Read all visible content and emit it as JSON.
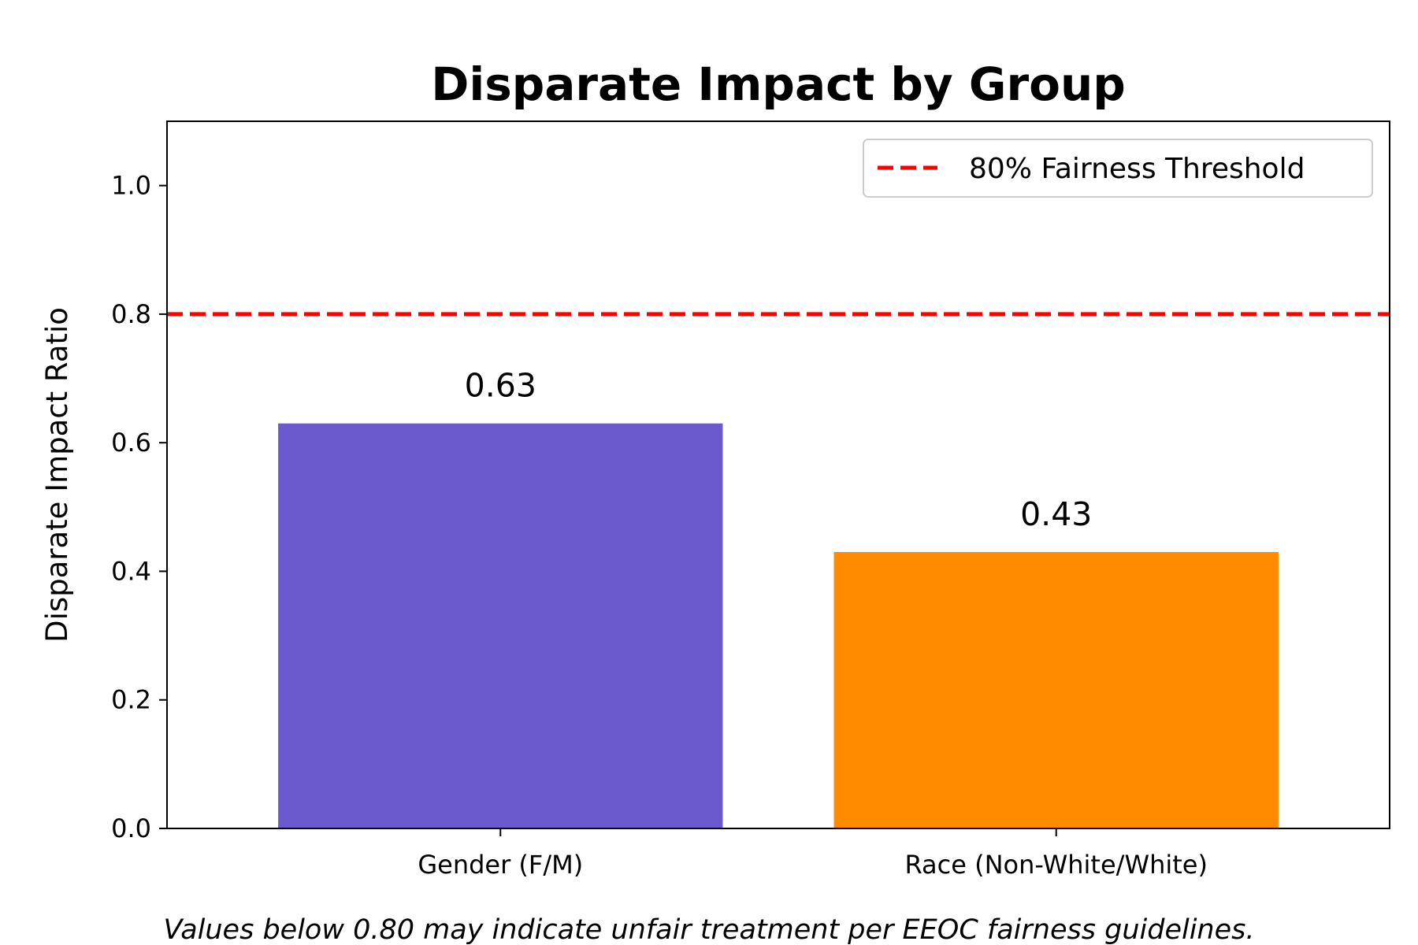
{
  "chart_data": {
    "type": "bar",
    "title": "Disparate Impact by Group",
    "xlabel": "",
    "ylabel": "Disparate Impact Ratio",
    "categories": [
      "Gender (F/M)",
      "Race (Non-White/White)"
    ],
    "values": [
      0.63,
      0.43
    ],
    "value_labels": [
      "0.63",
      "0.43"
    ],
    "bar_colors": [
      "#6a5acd",
      "#ff8c00"
    ],
    "ylim": [
      0,
      1.1
    ],
    "yticks": [
      0.0,
      0.2,
      0.4,
      0.6,
      0.8,
      1.0
    ],
    "ytick_labels": [
      "0.0",
      "0.2",
      "0.4",
      "0.6",
      "0.8",
      "1.0"
    ],
    "threshold": {
      "value": 0.8,
      "label": "80% Fairness Threshold",
      "color": "#ff0000",
      "style": "dashed"
    },
    "legend": {
      "placement": "top-right",
      "entries": [
        "80% Fairness Threshold"
      ]
    },
    "grid": false,
    "caption": "Values below 0.80 may indicate unfair treatment per EEOC fairness guidelines."
  }
}
